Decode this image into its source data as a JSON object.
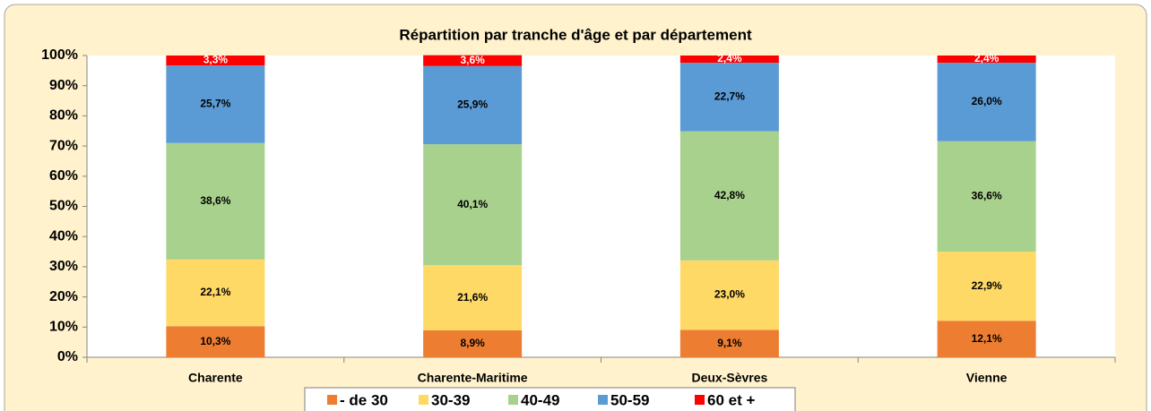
{
  "chart_data": {
    "type": "stacked_bar",
    "title": "Répartition par tranche d'âge et par département",
    "categories": [
      "Charente",
      "Charente-Maritime",
      "Deux-Sèvres",
      "Vienne"
    ],
    "series": [
      {
        "name": "- de 30",
        "color": "#ed7d31",
        "values": [
          10.3,
          8.9,
          9.1,
          12.1
        ],
        "value_labels": [
          "10,3%",
          "8,9%",
          "9,1%",
          "12,1%"
        ]
      },
      {
        "name": "30-39",
        "color": "#ffd966",
        "values": [
          22.1,
          21.6,
          23.0,
          22.9
        ],
        "value_labels": [
          "22,1%",
          "21,6%",
          "23,0%",
          "22,9%"
        ]
      },
      {
        "name": "40-49",
        "color": "#a9d18e",
        "values": [
          38.6,
          40.1,
          42.8,
          36.6
        ],
        "value_labels": [
          "38,6%",
          "40,1%",
          "42,8%",
          "36,6%"
        ]
      },
      {
        "name": "50-59",
        "color": "#5b9bd5",
        "values": [
          25.7,
          25.9,
          22.7,
          26.0
        ],
        "value_labels": [
          "25,7%",
          "25,9%",
          "22,7%",
          "26,0%"
        ]
      },
      {
        "name": "60 et +",
        "color": "#ff0000",
        "values": [
          3.3,
          3.6,
          2.4,
          2.4
        ],
        "value_labels": [
          "3,3%",
          "3,6%",
          "2,4%",
          "2,4%"
        ]
      }
    ],
    "ylim": [
      0,
      100
    ],
    "yticks": [
      {
        "value": 0,
        "label": "0%"
      },
      {
        "value": 10,
        "label": "10%"
      },
      {
        "value": 20,
        "label": "20%"
      },
      {
        "value": 30,
        "label": "30%"
      },
      {
        "value": 40,
        "label": "40%"
      },
      {
        "value": 50,
        "label": "50%"
      },
      {
        "value": 60,
        "label": "60%"
      },
      {
        "value": 70,
        "label": "70%"
      },
      {
        "value": 80,
        "label": "80%"
      },
      {
        "value": 90,
        "label": "90%"
      },
      {
        "value": 100,
        "label": "100%"
      }
    ],
    "grid": false,
    "legend": "bottom"
  }
}
